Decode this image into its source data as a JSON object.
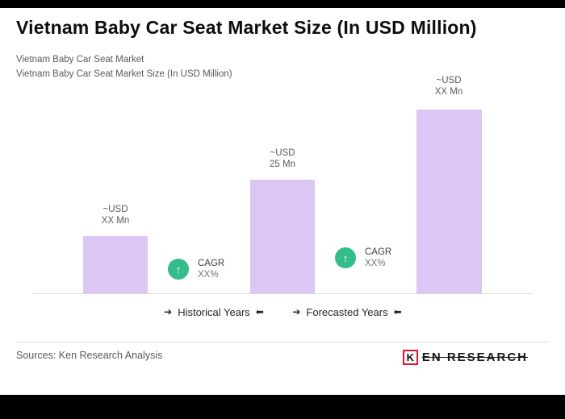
{
  "header": {
    "title": "Vietnam Baby Car Seat Market Size (In USD Million)",
    "subtitle_line1": "Vietnam Baby Car Seat Market",
    "subtitle_line2": "Vietnam Baby Car Seat Market Size (In USD Million)"
  },
  "icons": {
    "arrow_right": "➔",
    "arrow_left": "⬅",
    "arrow_up": "↑"
  },
  "chart_data": {
    "type": "bar",
    "title": "Vietnam Baby Car Seat Market Size (In USD Million)",
    "bar_color": "#dcc6f3",
    "cagr_badge_color": "#33bd8b",
    "grid": false,
    "bars": [
      {
        "label_line1": "~USD",
        "label_line2": "XX Mn",
        "estimated_value_usd_mn": 13
      },
      {
        "label_line1": "~USD",
        "label_line2": "25 Mn",
        "estimated_value_usd_mn": 25
      },
      {
        "label_line1": "~USD",
        "label_line2": "XX Mn",
        "estimated_value_usd_mn": 40
      }
    ],
    "cagr_annotations": [
      {
        "line1": "CAGR",
        "line2": "XX%"
      },
      {
        "line1": "CAGR",
        "line2": "XX%"
      }
    ],
    "x_ranges": [
      {
        "label": "Historical Years"
      },
      {
        "label": "Forecasted Years"
      }
    ],
    "legend_position": "below-axis"
  },
  "footer": {
    "sources": "Sources: Ken Research Analysis",
    "logo_mark": "K",
    "logo_text": "EN RESEARCH"
  }
}
